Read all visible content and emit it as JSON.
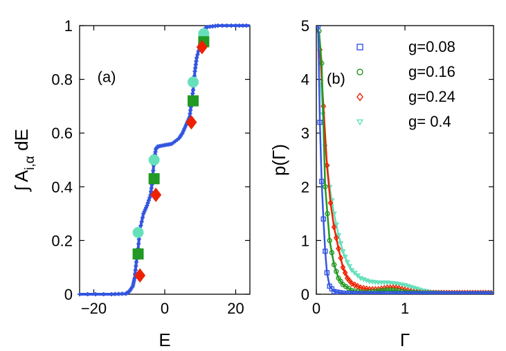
{
  "chart_data": [
    {
      "type": "scatter",
      "panel_label": "(a)",
      "xlabel": "E",
      "ylabel_prefix": "∫ A",
      "ylabel_sub": "i,α",
      "ylabel_suffix": " dE",
      "xlim": [
        -24,
        24
      ],
      "ylim": [
        0,
        1
      ],
      "xticks": [
        -20,
        0,
        20
      ],
      "xtick_labels": [
        "−20",
        "0",
        "20"
      ],
      "yticks": [
        0,
        0.2,
        0.4,
        0.6,
        0.8,
        1
      ],
      "ytick_labels": [
        "0",
        "0.2",
        "0.4",
        "0.6",
        "0.8",
        "1"
      ],
      "curve": {
        "color": "#3355e0",
        "x": [
          -24,
          -15,
          -11,
          -10,
          -9,
          -8.5,
          -8,
          -7.5,
          -7,
          -6,
          -5,
          -4,
          -3.5,
          -3,
          -2.5,
          -2,
          0,
          2,
          4,
          5,
          6,
          7,
          7.5,
          8,
          8.5,
          9,
          10,
          10.5,
          11,
          11.5,
          12,
          15,
          20,
          24
        ],
        "y": [
          0,
          0,
          0.002,
          0.01,
          0.03,
          0.06,
          0.12,
          0.17,
          0.24,
          0.3,
          0.33,
          0.37,
          0.42,
          0.5,
          0.54,
          0.55,
          0.555,
          0.56,
          0.58,
          0.6,
          0.63,
          0.66,
          0.71,
          0.76,
          0.83,
          0.88,
          0.93,
          0.96,
          0.98,
          0.99,
          0.995,
          1,
          1,
          1
        ]
      },
      "markers": [
        {
          "name": "cyan-circle",
          "shape": "circle",
          "color": "#66e0bb",
          "points": [
            [
              -7.5,
              0.23
            ],
            [
              -3,
              0.5
            ],
            [
              8,
              0.79
            ],
            [
              11,
              0.97
            ]
          ]
        },
        {
          "name": "green-square",
          "shape": "square",
          "color": "#229922",
          "points": [
            [
              -7.5,
              0.15
            ],
            [
              -3,
              0.43
            ],
            [
              8,
              0.72
            ],
            [
              11,
              0.94
            ]
          ]
        },
        {
          "name": "red-diamond",
          "shape": "diamond",
          "color": "#ee2200",
          "points": [
            [
              -7,
              0.07
            ],
            [
              -2.5,
              0.37
            ],
            [
              7.5,
              0.64
            ],
            [
              10.5,
              0.92
            ]
          ]
        }
      ]
    },
    {
      "type": "scatter",
      "panel_label": "(b)",
      "xlabel": "Γ",
      "ylabel": "p(Γ)",
      "xlim": [
        0,
        2
      ],
      "ylim": [
        0,
        5
      ],
      "xticks": [
        0,
        1
      ],
      "xtick_labels": [
        "0",
        "1"
      ],
      "yticks": [
        0,
        1,
        2,
        3,
        4,
        5
      ],
      "ytick_labels": [
        "0",
        "1",
        "2",
        "3",
        "4",
        "5"
      ],
      "series": [
        {
          "name": "g=0.08",
          "shape": "square",
          "color": "#3355e0",
          "x": [
            0.02,
            0.04,
            0.06,
            0.08,
            0.1,
            0.12,
            0.15,
            0.2,
            0.3,
            0.5,
            1.0,
            1.5,
            2.0
          ],
          "y": [
            5.0,
            3.2,
            2.1,
            1.4,
            0.8,
            0.4,
            0.15,
            0.05,
            0.02,
            0.01,
            0.01,
            0.01,
            0.01
          ]
        },
        {
          "name": "g=0.16",
          "shape": "circle",
          "color": "#229922",
          "x": [
            0.03,
            0.06,
            0.1,
            0.15,
            0.2,
            0.25,
            0.3,
            0.4,
            0.5,
            0.6,
            0.7,
            0.8,
            0.9,
            1.0,
            1.2,
            1.5,
            2.0
          ],
          "y": [
            4.9,
            4.3,
            2.0,
            1.0,
            0.55,
            0.3,
            0.18,
            0.07,
            0.04,
            0.04,
            0.06,
            0.08,
            0.07,
            0.04,
            0.02,
            0.01,
            0.01
          ]
        },
        {
          "name": "g=0.24",
          "shape": "diamond",
          "color": "#ee2200",
          "x": [
            0.04,
            0.08,
            0.12,
            0.16,
            0.2,
            0.25,
            0.3,
            0.35,
            0.4,
            0.5,
            0.6,
            0.7,
            0.8,
            0.9,
            1.0,
            1.1,
            1.2,
            1.5,
            2.0
          ],
          "y": [
            4.55,
            3.5,
            2.4,
            1.7,
            1.25,
            0.85,
            0.5,
            0.3,
            0.2,
            0.12,
            0.09,
            0.09,
            0.12,
            0.12,
            0.08,
            0.04,
            0.02,
            0.02,
            0.02
          ]
        },
        {
          "name": "g= 0.4",
          "shape": "triangle-down",
          "color": "#66e0bb",
          "x": [
            0.05,
            0.1,
            0.15,
            0.2,
            0.25,
            0.3,
            0.35,
            0.4,
            0.5,
            0.6,
            0.7,
            0.8,
            0.9,
            1.0,
            1.1,
            1.2,
            1.3,
            1.5,
            1.8,
            2.0
          ],
          "y": [
            3.95,
            2.75,
            2.0,
            1.5,
            1.1,
            0.8,
            0.6,
            0.45,
            0.3,
            0.24,
            0.22,
            0.22,
            0.2,
            0.17,
            0.12,
            0.07,
            0.04,
            0.03,
            0.03,
            0.03
          ]
        }
      ],
      "legend_position": "top-right"
    }
  ]
}
